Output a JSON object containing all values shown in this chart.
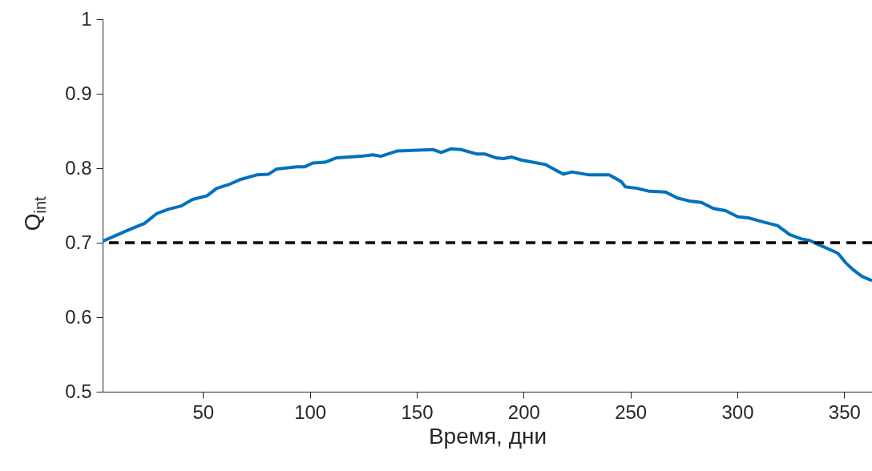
{
  "chart_data": {
    "type": "line",
    "xlabel": "Время, дни",
    "ylabel": "Q$_{int}$",
    "xlim": [
      3,
      363
    ],
    "xticks": [
      50,
      100,
      150,
      200,
      250,
      300,
      350
    ],
    "ylim": [
      0.5,
      1
    ],
    "yticks": [
      0.5,
      0.6,
      0.7,
      0.8,
      0.9,
      1
    ],
    "grid": false,
    "marker": "none",
    "line_style": "solid",
    "x": [
      3,
      15.1,
      22.6,
      28.3,
      33.9,
      39.5,
      45.1,
      51.9,
      56.4,
      62,
      67.6,
      75.1,
      80.7,
      84.5,
      93.9,
      97.6,
      101.4,
      107,
      112.6,
      123.9,
      129.5,
      133.2,
      140.7,
      157.6,
      161.4,
      165.9,
      170.7,
      178.2,
      182,
      186.9,
      190.6,
      194.4,
      198.9,
      210.1,
      214.6,
      218.7,
      222.5,
      230.7,
      240.1,
      245.7,
      247.6,
      253.2,
      258.9,
      266.4,
      272,
      277.6,
      283.2,
      288.8,
      294.5,
      300.1,
      305.7,
      313.2,
      318.8,
      324.5,
      330.1,
      333.9,
      337.6,
      347,
      350.7,
      354.5,
      358.2,
      363
    ],
    "series": [
      {
        "color": "#0072bd",
        "values": [
          0.702,
          0.717,
          0.726,
          0.739,
          0.745,
          0.749,
          0.758,
          0.763,
          0.773,
          0.778,
          0.785,
          0.791,
          0.792,
          0.799,
          0.802,
          0.802,
          0.807,
          0.808,
          0.814,
          0.816,
          0.818,
          0.816,
          0.823,
          0.825,
          0.821,
          0.826,
          0.825,
          0.819,
          0.819,
          0.814,
          0.813,
          0.815,
          0.811,
          0.805,
          0.798,
          0.792,
          0.795,
          0.791,
          0.791,
          0.782,
          0.775,
          0.773,
          0.769,
          0.768,
          0.76,
          0.756,
          0.754,
          0.746,
          0.743,
          0.735,
          0.733,
          0.727,
          0.723,
          0.711,
          0.705,
          0.703,
          0.698,
          0.686,
          0.673,
          0.663,
          0.655,
          0.649
        ]
      }
    ],
    "ref_lines": [
      {
        "axis": "y",
        "value": 0.7,
        "color": "#000000",
        "line_style": "dashed"
      }
    ]
  }
}
